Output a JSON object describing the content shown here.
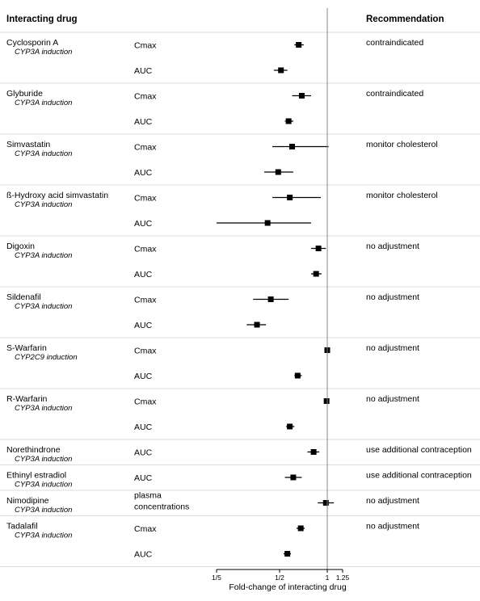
{
  "header": {
    "interacting_drug": "Interacting drug",
    "recommendation": "Recommendation"
  },
  "chart_data": {
    "type": "forest",
    "x_scale": "log2",
    "xlim": [
      0.2,
      1.25
    ],
    "reference_line": 1,
    "xticks": [
      {
        "value": 0.2,
        "label": "1/5"
      },
      {
        "value": 0.5,
        "label": "1/2"
      },
      {
        "value": 1,
        "label": "1"
      },
      {
        "value": 1.25,
        "label": "1.25"
      }
    ],
    "xlabel": "Fold-change of interacting drug",
    "groups": [
      {
        "drug": "Cyclosporin A",
        "mechanism": "CYP3A induction",
        "recommendation": "contraindicated",
        "rows": [
          {
            "measure": "Cmax",
            "estimate": 0.66,
            "low": 0.62,
            "high": 0.71
          },
          {
            "measure": "AUC",
            "estimate": 0.51,
            "low": 0.46,
            "high": 0.56
          }
        ]
      },
      {
        "drug": "Glyburide",
        "mechanism": "CYP3A induction",
        "recommendation": "contraindicated",
        "rows": [
          {
            "measure": "Cmax",
            "estimate": 0.69,
            "low": 0.6,
            "high": 0.79
          },
          {
            "measure": "AUC",
            "estimate": 0.57,
            "low": 0.54,
            "high": 0.61
          }
        ]
      },
      {
        "drug": "Simvastatin",
        "mechanism": "CYP3A induction",
        "recommendation": "monitor cholesterol",
        "rows": [
          {
            "measure": "Cmax",
            "estimate": 0.6,
            "low": 0.45,
            "high": 1.02
          },
          {
            "measure": "AUC",
            "estimate": 0.49,
            "low": 0.4,
            "high": 0.61
          }
        ]
      },
      {
        "drug": "ß-Hydroxy acid simvastatin",
        "mechanism": "CYP3A induction",
        "recommendation": "monitor cholesterol",
        "rows": [
          {
            "measure": "Cmax",
            "estimate": 0.58,
            "low": 0.45,
            "high": 0.91
          },
          {
            "measure": "AUC",
            "estimate": 0.42,
            "low": 0.2,
            "high": 0.79
          }
        ]
      },
      {
        "drug": "Digoxin",
        "mechanism": "CYP3A induction",
        "recommendation": "no adjustment",
        "rows": [
          {
            "measure": "Cmax",
            "estimate": 0.88,
            "low": 0.79,
            "high": 0.98
          },
          {
            "measure": "AUC",
            "estimate": 0.85,
            "low": 0.79,
            "high": 0.92
          }
        ]
      },
      {
        "drug": "Sildenafil",
        "mechanism": "CYP3A induction",
        "recommendation": "no adjustment",
        "rows": [
          {
            "measure": "Cmax",
            "estimate": 0.44,
            "low": 0.34,
            "high": 0.57
          },
          {
            "measure": "AUC",
            "estimate": 0.36,
            "low": 0.31,
            "high": 0.41
          }
        ]
      },
      {
        "drug": "S-Warfarin",
        "mechanism": "CYP2C9 induction",
        "recommendation": "no adjustment",
        "rows": [
          {
            "measure": "Cmax",
            "estimate": 1.0,
            "low": 0.97,
            "high": 1.04
          },
          {
            "measure": "AUC",
            "estimate": 0.65,
            "low": 0.62,
            "high": 0.69
          }
        ]
      },
      {
        "drug": "R-Warfarin",
        "mechanism": "CYP3A induction",
        "recommendation": "no adjustment",
        "rows": [
          {
            "measure": "Cmax",
            "estimate": 0.99,
            "low": 0.96,
            "high": 1.02
          },
          {
            "measure": "AUC",
            "estimate": 0.58,
            "low": 0.55,
            "high": 0.62
          }
        ]
      },
      {
        "drug": "Norethindrone",
        "mechanism": "CYP3A induction",
        "recommendation": "use additional contraception",
        "rows": [
          {
            "measure": "AUC",
            "estimate": 0.82,
            "low": 0.75,
            "high": 0.89
          }
        ]
      },
      {
        "drug": "Ethinyl estradiol",
        "mechanism": "CYP3A induction",
        "recommendation": "use additional contraception",
        "rows": [
          {
            "measure": "AUC",
            "estimate": 0.61,
            "low": 0.54,
            "high": 0.69
          }
        ]
      },
      {
        "drug": "Nimodipine",
        "mechanism": "CYP3A induction",
        "recommendation": "no adjustment",
        "rows": [
          {
            "measure": "plasma concentrations",
            "estimate": 0.98,
            "low": 0.87,
            "high": 1.1
          }
        ]
      },
      {
        "drug": "Tadalafil",
        "mechanism": "CYP3A induction",
        "recommendation": "no adjustment",
        "rows": [
          {
            "measure": "Cmax",
            "estimate": 0.68,
            "low": 0.64,
            "high": 0.72
          },
          {
            "measure": "AUC",
            "estimate": 0.56,
            "low": 0.53,
            "high": 0.59
          }
        ]
      }
    ]
  }
}
